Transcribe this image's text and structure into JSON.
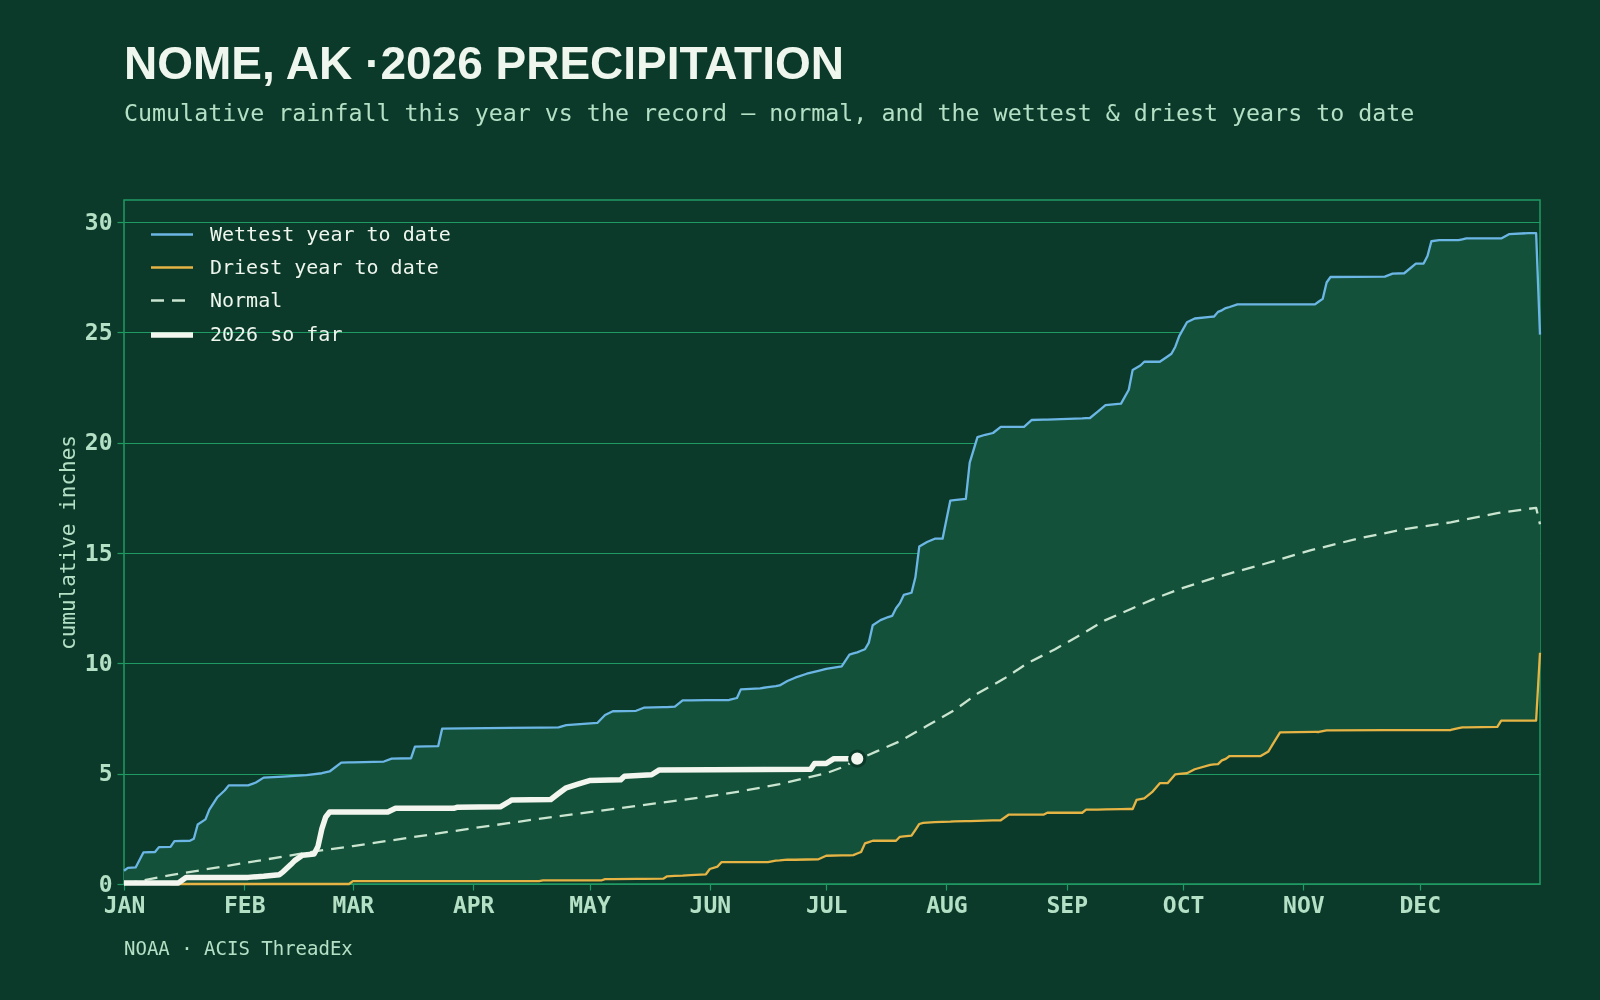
{
  "chart_data": {
    "type": "line",
    "title": "NOME, AK ·2026 PRECIPITATION",
    "subtitle": "Cumulative rainfall this year vs the record — normal, and the wettest & driest years to date",
    "ylabel": "cumulative inches",
    "annotations": [
      "NOAA · ACIS ThreadEx"
    ],
    "xlim": [
      "2026-01-01",
      "2027-01-01"
    ],
    "xticks": [
      {
        "value": "2026-01-01",
        "label": "JAN"
      },
      {
        "value": "2026-02-01",
        "label": "FEB"
      },
      {
        "value": "2026-03-01",
        "label": "MAR"
      },
      {
        "value": "2026-04-01",
        "label": "APR"
      },
      {
        "value": "2026-05-01",
        "label": "MAY"
      },
      {
        "value": "2026-06-01",
        "label": "JUN"
      },
      {
        "value": "2026-07-01",
        "label": "JUL"
      },
      {
        "value": "2026-08-01",
        "label": "AUG"
      },
      {
        "value": "2026-09-01",
        "label": "SEP"
      },
      {
        "value": "2026-10-01",
        "label": "OCT"
      },
      {
        "value": "2026-11-01",
        "label": "NOV"
      },
      {
        "value": "2026-12-01",
        "label": "DEC"
      }
    ],
    "ylim": [
      0,
      31
    ],
    "yticks": [
      0,
      5,
      10,
      15,
      20,
      25,
      30
    ],
    "grid": "y",
    "legend": "top left",
    "x": [
      "2026-01-01",
      "2026-01-02",
      "2026-01-04",
      "2026-01-06",
      "2026-01-09",
      "2026-01-10",
      "2026-01-13",
      "2026-01-14",
      "2026-01-18",
      "2026-01-19",
      "2026-01-20",
      "2026-01-22",
      "2026-01-23",
      "2026-01-25",
      "2026-01-27",
      "2026-01-28",
      "2026-02-02",
      "2026-02-04",
      "2026-02-06",
      "2026-02-11",
      "2026-02-17",
      "2026-02-21",
      "2026-02-23",
      "2026-02-26",
      "2026-02-28",
      "2026-03-01",
      "2026-03-09",
      "2026-03-11",
      "2026-03-16",
      "2026-03-17",
      "2026-03-23",
      "2026-03-24",
      "2026-04-18",
      "2026-04-19",
      "2026-04-23",
      "2026-04-25",
      "2026-05-03",
      "2026-05-04",
      "2026-05-05",
      "2026-05-07",
      "2026-05-13",
      "2026-05-15",
      "2026-05-20",
      "2026-05-21",
      "2026-05-23",
      "2026-05-25",
      "2026-05-27",
      "2026-05-31",
      "2026-06-01",
      "2026-06-03",
      "2026-06-04",
      "2026-06-06",
      "2026-06-08",
      "2026-06-09",
      "2026-06-14",
      "2026-06-16",
      "2026-06-18",
      "2026-06-19",
      "2026-06-21",
      "2026-06-23",
      "2026-06-26",
      "2026-06-29",
      "2026-07-01",
      "2026-07-05",
      "2026-07-07",
      "2026-07-08",
      "2026-07-09",
      "2026-07-10",
      "2026-07-11",
      "2026-07-12",
      "2026-07-13",
      "2026-07-15",
      "2026-07-17",
      "2026-07-18",
      "2026-07-19",
      "2026-07-20",
      "2026-07-21",
      "2026-07-23",
      "2026-07-24",
      "2026-07-25",
      "2026-07-26",
      "2026-07-27",
      "2026-07-29",
      "2026-07-31",
      "2026-08-02",
      "2026-08-03",
      "2026-08-06",
      "2026-08-07",
      "2026-08-09",
      "2026-08-11",
      "2026-08-13",
      "2026-08-15",
      "2026-08-17",
      "2026-08-21",
      "2026-08-23",
      "2026-08-26",
      "2026-08-27",
      "2026-09-05",
      "2026-09-06",
      "2026-09-07",
      "2026-09-09",
      "2026-09-11",
      "2026-09-15",
      "2026-09-17",
      "2026-09-18",
      "2026-09-19",
      "2026-09-20",
      "2026-09-21",
      "2026-09-23",
      "2026-09-25",
      "2026-09-27",
      "2026-09-28",
      "2026-09-29",
      "2026-09-30",
      "2026-10-02",
      "2026-10-04",
      "2026-10-08",
      "2026-10-09",
      "2026-10-10",
      "2026-10-11",
      "2026-10-12",
      "2026-10-13",
      "2026-10-15",
      "2026-10-21",
      "2026-10-23",
      "2026-10-25",
      "2026-10-26",
      "2026-11-04",
      "2026-11-05",
      "2026-11-06",
      "2026-11-07",
      "2026-11-08",
      "2026-11-22",
      "2026-11-24",
      "2026-11-27",
      "2026-11-30",
      "2026-12-02",
      "2026-12-03",
      "2026-12-04",
      "2026-12-06",
      "2026-12-09",
      "2026-12-11",
      "2026-12-12",
      "2026-12-13",
      "2026-12-21",
      "2026-12-22",
      "2026-12-24",
      "2026-12-29",
      "2026-12-31",
      "2027-01-01"
    ],
    "series": [
      {
        "name": "Wettest year to date",
        "color": "#6cb6e6",
        "values": [
          0.6,
          0.73,
          0.75,
          1.43,
          1.45,
          1.67,
          1.68,
          1.94,
          1.96,
          2.05,
          2.7,
          2.93,
          3.37,
          3.92,
          4.25,
          4.47,
          4.47,
          4.6,
          4.82,
          4.87,
          4.93,
          5.02,
          5.1,
          5.5,
          5.51,
          5.51,
          5.55,
          5.68,
          5.7,
          6.23,
          6.25,
          7.04,
          7.09,
          7.09,
          7.1,
          7.2,
          7.3,
          7.48,
          7.66,
          7.83,
          7.85,
          7.99,
          8.02,
          8.02,
          8.04,
          8.32,
          8.32,
          8.33,
          8.33,
          8.33,
          8.33,
          8.34,
          8.43,
          8.82,
          8.87,
          8.92,
          8.97,
          9.0,
          9.2,
          9.35,
          9.53,
          9.66,
          9.75,
          9.86,
          10.4,
          10.45,
          10.5,
          10.57,
          10.64,
          10.94,
          11.73,
          11.96,
          12.1,
          12.15,
          12.5,
          12.73,
          13.1,
          13.2,
          13.9,
          15.3,
          15.4,
          15.5,
          15.65,
          15.65,
          17.38,
          17.4,
          17.45,
          19.1,
          20.25,
          20.36,
          20.44,
          20.72,
          20.72,
          20.72,
          21.03,
          21.05,
          21.05,
          21.1,
          21.11,
          21.12,
          21.41,
          21.7,
          21.77,
          22.4,
          23.3,
          23.4,
          23.5,
          23.67,
          23.67,
          23.67,
          23.91,
          24.03,
          24.35,
          24.83,
          25.46,
          25.63,
          25.7,
          25.72,
          25.93,
          26.0,
          26.1,
          26.15,
          26.27,
          26.27,
          26.27,
          26.27,
          26.27,
          26.27,
          26.4,
          26.52,
          27.26,
          27.51,
          27.53,
          27.66,
          27.68,
          28.12,
          28.12,
          28.46,
          29.13,
          29.18,
          29.18,
          29.18,
          29.22,
          29.26,
          29.26,
          29.26,
          29.45,
          29.5,
          29.5,
          24.9
        ],
        "upper": [
          0.6,
          0.73,
          0.75,
          1.43,
          1.45,
          1.67,
          1.68,
          1.94,
          1.96,
          2.05,
          2.7,
          2.93,
          3.37,
          3.92,
          4.25,
          4.47,
          4.47,
          4.6,
          4.82,
          4.87,
          4.93,
          5.02,
          5.1,
          5.5,
          5.51,
          5.51,
          5.55,
          5.68,
          5.7,
          6.23,
          6.25,
          7.04,
          7.09,
          7.09,
          7.1,
          7.2,
          7.3,
          7.48,
          7.66,
          7.83,
          7.85,
          7.99,
          8.02,
          8.02,
          8.04,
          8.32,
          8.32,
          8.33,
          8.33,
          8.33,
          8.33,
          8.34,
          8.43,
          8.82,
          8.87,
          8.92,
          8.97,
          9.0,
          9.2,
          9.35,
          9.53,
          9.66,
          9.75,
          9.86,
          10.4,
          10.45,
          10.5,
          10.57,
          10.64,
          10.94,
          11.73,
          11.96,
          12.1,
          12.15,
          12.5,
          12.73,
          13.1,
          13.2,
          13.9,
          15.3,
          15.4,
          15.5,
          15.65,
          15.65,
          17.38,
          17.4,
          17.45,
          19.1,
          20.25,
          20.36,
          20.44,
          20.72,
          20.72,
          20.72,
          21.03,
          21.05,
          21.05,
          21.1,
          21.11,
          21.12,
          21.41,
          21.7,
          21.77,
          22.4,
          23.3,
          23.4,
          23.5,
          23.67,
          23.67,
          23.67,
          23.91,
          24.03,
          24.35,
          24.83,
          25.46,
          25.63,
          25.7,
          25.72,
          25.93,
          26.0,
          26.1,
          26.15,
          26.27,
          26.27,
          26.27,
          26.27,
          26.27,
          26.27,
          26.4,
          26.52,
          27.26,
          27.51,
          27.53,
          27.66,
          27.68,
          28.12,
          28.12,
          28.46,
          29.13,
          29.18,
          29.18,
          29.18,
          29.22,
          29.26,
          29.26,
          29.26,
          29.45,
          29.5,
          29.5,
          24.9
        ],
        "lower": [
          0,
          0,
          0,
          0,
          0,
          0,
          0,
          0,
          0,
          0,
          0,
          0,
          0,
          0,
          0,
          0,
          0,
          0,
          0,
          0,
          0,
          0,
          0,
          0,
          0,
          0.13,
          0.13,
          0.13,
          0.13,
          0.13,
          0.13,
          0.13,
          0.13,
          0.16,
          0.16,
          0.16,
          0.16,
          0.16,
          0.22,
          0.22,
          0.23,
          0.23,
          0.24,
          0.35,
          0.37,
          0.38,
          0.4,
          0.44,
          0.68,
          0.79,
          0.99,
          0.99,
          0.99,
          0.99,
          0.99,
          0.99,
          1.06,
          1.07,
          1.1,
          1.1,
          1.11,
          1.12,
          1.28,
          1.3,
          1.3,
          1.31,
          1.38,
          1.45,
          1.84,
          1.9,
          1.96,
          1.96,
          1.96,
          1.96,
          1.96,
          2.14,
          2.16,
          2.19,
          2.45,
          2.72,
          2.77,
          2.78,
          2.8,
          2.82,
          2.83,
          2.84,
          2.85,
          2.85,
          2.86,
          2.87,
          2.88,
          2.89,
          3.14,
          3.14,
          3.14,
          3.14,
          3.23,
          3.23,
          3.37,
          3.37,
          3.37,
          3.38,
          3.39,
          3.4,
          3.4,
          3.81,
          3.85,
          3.88,
          4.16,
          4.57,
          4.57,
          4.77,
          4.97,
          4.99,
          5.02,
          5.2,
          5.4,
          5.42,
          5.43,
          5.6,
          5.67,
          5.8,
          5.8,
          5.8,
          6.01,
          6.59,
          6.87,
          6.89,
          6.89,
          6.93,
          6.96,
          6.96,
          6.97,
          6.97,
          6.97,
          6.97,
          6.97,
          6.97,
          6.97,
          6.97,
          6.98,
          7.06,
          7.1,
          7.1,
          7.12,
          7.4,
          7.4,
          7.4,
          7.4,
          10.48
        ]
      },
      {
        "name": "Driest year to date",
        "color": "#e5b445",
        "values": [
          null,
          null,
          null,
          null,
          null,
          null,
          0,
          0,
          0,
          0,
          0,
          0,
          0,
          0,
          0,
          0,
          0,
          0,
          0,
          0,
          0,
          0,
          0,
          0,
          0,
          0.13,
          0.13,
          0.13,
          0.13,
          0.13,
          0.13,
          0.13,
          0.13,
          0.16,
          0.16,
          0.16,
          0.16,
          0.16,
          0.22,
          0.22,
          0.23,
          0.23,
          0.24,
          0.35,
          0.37,
          0.38,
          0.4,
          0.44,
          0.68,
          0.79,
          0.99,
          0.99,
          0.99,
          0.99,
          0.99,
          0.99,
          1.06,
          1.07,
          1.1,
          1.1,
          1.11,
          1.12,
          1.28,
          1.3,
          1.3,
          1.31,
          1.38,
          1.45,
          1.84,
          1.9,
          1.96,
          1.96,
          1.96,
          1.96,
          1.96,
          2.14,
          2.16,
          2.19,
          2.45,
          2.72,
          2.77,
          2.78,
          2.8,
          2.82,
          2.83,
          2.84,
          2.85,
          2.85,
          2.86,
          2.87,
          2.88,
          2.89,
          3.14,
          3.14,
          3.14,
          3.14,
          3.23,
          3.23,
          3.37,
          3.37,
          3.37,
          3.38,
          3.39,
          3.4,
          3.4,
          3.81,
          3.85,
          3.88,
          4.16,
          4.57,
          4.57,
          4.77,
          4.97,
          4.99,
          5.02,
          5.2,
          5.4,
          5.42,
          5.43,
          5.6,
          5.67,
          5.8,
          5.8,
          5.8,
          6.01,
          6.59,
          6.87,
          6.89,
          6.89,
          6.93,
          6.96,
          6.96,
          6.97,
          6.97,
          6.97,
          6.97,
          6.97,
          6.97,
          6.97,
          6.97,
          6.98,
          7.06,
          7.1,
          7.1,
          7.12,
          7.4,
          7.4,
          7.4,
          7.4,
          10.48
        ]
      },
      {
        "name": "Normal",
        "color": "#c9e4cf",
        "line_style": "dashed",
        "x": [
          "2026-01-01",
          "2026-01-13",
          "2026-02-01",
          "2026-02-20",
          "2026-03-01",
          "2026-03-11",
          "2026-04-01",
          "2026-04-17",
          "2026-05-01",
          "2026-05-18",
          "2026-06-01",
          "2026-06-09",
          "2026-06-19",
          "2026-07-01",
          "2026-07-05",
          "2026-07-08",
          "2026-07-14",
          "2026-07-20",
          "2026-07-27",
          "2026-08-03",
          "2026-08-09",
          "2026-08-16",
          "2026-08-22",
          "2026-08-29",
          "2026-09-05",
          "2026-09-11",
          "2026-09-18",
          "2026-09-24",
          "2026-10-01",
          "2026-10-08",
          "2026-10-14",
          "2026-10-21",
          "2026-11-03",
          "2026-11-15",
          "2026-11-27",
          "2026-12-09",
          "2026-12-21",
          "2026-12-31",
          "2027-01-01"
        ],
        "values": [
          0,
          0.4,
          0.95,
          1.5,
          1.72,
          1.98,
          2.53,
          2.93,
          3.26,
          3.65,
          3.98,
          4.2,
          4.53,
          5.02,
          5.28,
          5.55,
          6.01,
          6.47,
          7.17,
          7.87,
          8.63,
          9.32,
          10.02,
          10.64,
          11.34,
          11.96,
          12.5,
          12.96,
          13.42,
          13.82,
          14.12,
          14.46,
          15.13,
          15.65,
          16.08,
          16.39,
          16.81,
          17.05,
          16.3
        ]
      },
      {
        "name": "2026 so far",
        "color": "#f3f6ef",
        "x": [
          "2026-01-01",
          "2026-01-15",
          "2026-01-17",
          "2026-02-02",
          "2026-02-06",
          "2026-02-10",
          "2026-02-11",
          "2026-02-13",
          "2026-02-14",
          "2026-02-16",
          "2026-02-19",
          "2026-02-20",
          "2026-02-21",
          "2026-02-22",
          "2026-02-23",
          "2026-03-10",
          "2026-03-12",
          "2026-03-27",
          "2026-03-28",
          "2026-04-08",
          "2026-04-11",
          "2026-04-21",
          "2026-04-23",
          "2026-04-25",
          "2026-04-28",
          "2026-05-01",
          "2026-05-09",
          "2026-05-10",
          "2026-05-17",
          "2026-05-19",
          "2026-06-27",
          "2026-06-28",
          "2026-07-01",
          "2026-07-03",
          "2026-07-09"
        ],
        "values": [
          0.05,
          0.05,
          0.29,
          0.3,
          0.35,
          0.42,
          0.55,
          0.88,
          1.06,
          1.3,
          1.36,
          1.7,
          2.5,
          3.04,
          3.26,
          3.26,
          3.43,
          3.43,
          3.48,
          3.5,
          3.81,
          3.83,
          4.1,
          4.36,
          4.53,
          4.69,
          4.72,
          4.88,
          4.95,
          5.17,
          5.2,
          5.46,
          5.46,
          5.68,
          5.68
        ]
      },
      {
        "type": "scatter",
        "color": "#f3f6ef",
        "marker": "circle",
        "x": [
          "2026-07-09"
        ],
        "values": [
          5.68
        ]
      }
    ]
  }
}
